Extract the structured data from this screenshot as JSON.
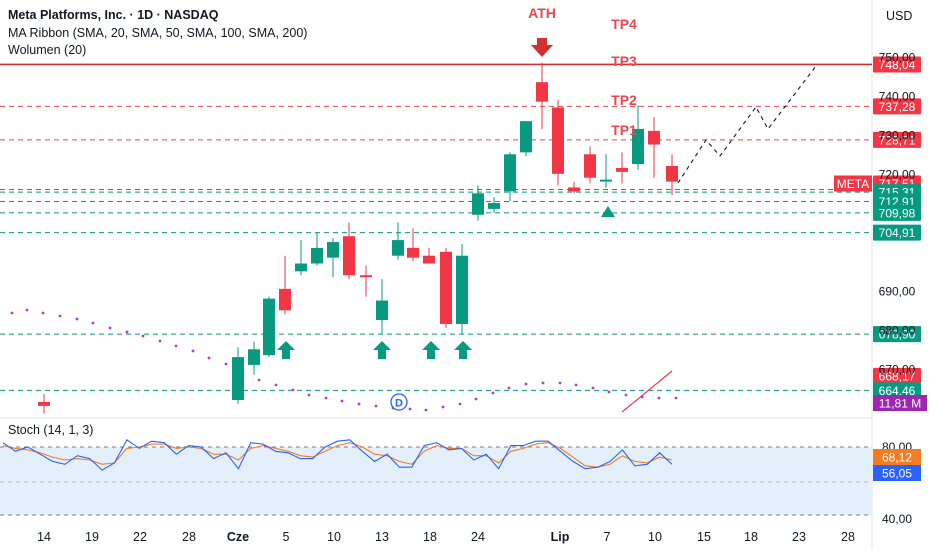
{
  "legend": {
    "title": "Meta Platforms, Inc. · 1D · NASDAQ",
    "ma_ribbon": "MA Ribbon (SMA, 20, SMA, 50, SMA, 100, SMA, 200)",
    "volume": "Wolumen (20)",
    "stoch": "Stoch (14, 1, 3)"
  },
  "currency": "USD",
  "colors": {
    "up": "#089981",
    "down": "#f23645",
    "red_text": "#e8484f",
    "dashed_green": "#089981",
    "dashed_red": "#e8484f",
    "stoch_k": "#2962ff",
    "stoch_d": "#f57c20",
    "ma_dots": "#b23bd6",
    "volume_tag": "#9c27b0",
    "stoch_band": "#e3f0fb"
  },
  "chart_data": {
    "type": "candlestick",
    "y_ticks": [
      "750,00",
      "740,00",
      "730,00",
      "720,00",
      "690,00",
      "680,00",
      "670,00"
    ],
    "x_ticks": [
      "14",
      "19",
      "22",
      "28",
      "Cze",
      "5",
      "10",
      "13",
      "18",
      "24",
      "Lip",
      "7",
      "10",
      "15",
      "18",
      "23",
      "28"
    ],
    "ylim": [
      660,
      756
    ],
    "candles": [
      {
        "o": 661.5,
        "h": 663.5,
        "l": 658.5,
        "c": 660.5
      },
      {
        "o": 662.0,
        "h": 675.5,
        "l": 661.0,
        "c": 673.0
      },
      {
        "o": 671.0,
        "h": 677.0,
        "l": 668.5,
        "c": 675.0
      },
      {
        "o": 673.5,
        "h": 688.5,
        "l": 673.0,
        "c": 688.0
      },
      {
        "o": 690.5,
        "h": 699.0,
        "l": 684.0,
        "c": 685.0
      },
      {
        "o": 695.0,
        "h": 703.0,
        "l": 694.0,
        "c": 697.0
      },
      {
        "o": 697.0,
        "h": 705.0,
        "l": 696.5,
        "c": 701.0
      },
      {
        "o": 698.5,
        "h": 703.5,
        "l": 693.5,
        "c": 702.5
      },
      {
        "o": 704.0,
        "h": 707.5,
        "l": 693.0,
        "c": 694.0
      },
      {
        "o": 694.0,
        "h": 696.5,
        "l": 688.5,
        "c": 693.5
      },
      {
        "o": 682.5,
        "h": 693.0,
        "l": 679.0,
        "c": 687.5
      },
      {
        "o": 699.0,
        "h": 707.5,
        "l": 698.0,
        "c": 703.0
      },
      {
        "o": 701.0,
        "h": 706.0,
        "l": 697.5,
        "c": 698.5
      },
      {
        "o": 699.0,
        "h": 701.0,
        "l": 697.5,
        "c": 697.0
      },
      {
        "o": 700.0,
        "h": 701.0,
        "l": 680.5,
        "c": 681.5
      },
      {
        "o": 681.5,
        "h": 702.0,
        "l": 679.0,
        "c": 699.0
      },
      {
        "o": 709.5,
        "h": 717.0,
        "l": 708.0,
        "c": 715.0
      },
      {
        "o": 711.0,
        "h": 714.0,
        "l": 710.0,
        "c": 712.5
      },
      {
        "o": 715.5,
        "h": 725.5,
        "l": 713.0,
        "c": 725.0
      },
      {
        "o": 725.5,
        "h": 733.0,
        "l": 724.5,
        "c": 733.5
      },
      {
        "o": 743.5,
        "h": 748.5,
        "l": 731.5,
        "c": 738.5
      },
      {
        "o": 737.0,
        "h": 739.0,
        "l": 717.0,
        "c": 720.0
      },
      {
        "o": 716.5,
        "h": 718.0,
        "l": 715.0,
        "c": 715.5
      },
      {
        "o": 725.0,
        "h": 727.0,
        "l": 717.5,
        "c": 719.0
      },
      {
        "o": 718.0,
        "h": 725.0,
        "l": 716.5,
        "c": 718.5
      },
      {
        "o": 721.5,
        "h": 725.5,
        "l": 717.5,
        "c": 720.5
      },
      {
        "o": 722.5,
        "h": 737.5,
        "l": 721.0,
        "c": 731.5
      },
      {
        "o": 731.0,
        "h": 734.5,
        "l": 719.0,
        "c": 727.5
      },
      {
        "o": 722.0,
        "h": 725.0,
        "l": 714.5,
        "c": 718.0
      }
    ],
    "price_labels": [
      {
        "text": "748,04",
        "value": 748.04,
        "style": "red-solid"
      },
      {
        "text": "737,28",
        "value": 737.28,
        "style": "red-dash"
      },
      {
        "text": "728,71",
        "value": 728.71,
        "style": "red-dash"
      },
      {
        "text": "717,51",
        "value": 717.51,
        "style": "current"
      },
      {
        "text": "715,31",
        "value": 715.31,
        "style": "green-dash"
      },
      {
        "text": "712,91",
        "value": 712.91,
        "style": "green-dash"
      },
      {
        "text": "709,98",
        "value": 709.98,
        "style": "green-dash"
      },
      {
        "text": "704,91",
        "value": 704.91,
        "style": "green-dash"
      },
      {
        "text": "678,90",
        "value": 678.9,
        "style": "green-dash"
      },
      {
        "text": "668,17",
        "value": 668.17,
        "style": "red-box"
      },
      {
        "text": "664,46",
        "value": 664.46,
        "style": "green-dash"
      }
    ],
    "symbol_tag": "META",
    "volume_tag": "11,81 M",
    "annotations": {
      "ath": "ATH",
      "tp4": "TP4",
      "tp3": "TP3",
      "tp2": "TP2",
      "tp1": "TP1",
      "dividend": "D"
    },
    "projection": [
      {
        "t": 28.4,
        "v": 719
      },
      {
        "t": 30.6,
        "v": 729.5
      },
      {
        "t": 31.6,
        "v": 726
      },
      {
        "t": 33.4,
        "v": 737
      },
      {
        "t": 34.1,
        "v": 733
      },
      {
        "t": 36.3,
        "v": 749.5
      }
    ],
    "stoch": {
      "ticks": [
        "80,00",
        "40,00"
      ],
      "k_label": "68,12",
      "d_label": "56,05",
      "k": [
        86,
        74,
        80,
        70,
        60,
        56,
        68,
        64,
        48,
        58,
        90,
        78,
        88,
        86,
        70,
        82,
        80,
        64,
        72,
        50,
        86,
        84,
        74,
        72,
        64,
        64,
        80,
        88,
        90,
        74,
        60,
        70,
        52,
        52,
        82,
        86,
        76,
        78,
        62,
        70,
        50,
        82,
        82,
        88,
        88,
        74,
        60,
        50,
        52,
        60,
        76,
        54,
        56,
        72,
        56
      ],
      "d": [
        82,
        78,
        76,
        72,
        66,
        62,
        64,
        62,
        56,
        58,
        78,
        80,
        84,
        84,
        78,
        80,
        78,
        70,
        70,
        62,
        78,
        82,
        78,
        74,
        68,
        66,
        74,
        82,
        86,
        80,
        70,
        68,
        60,
        56,
        74,
        82,
        78,
        78,
        68,
        68,
        58,
        74,
        78,
        84,
        86,
        78,
        66,
        54,
        52,
        56,
        68,
        60,
        58,
        66,
        62
      ]
    }
  }
}
